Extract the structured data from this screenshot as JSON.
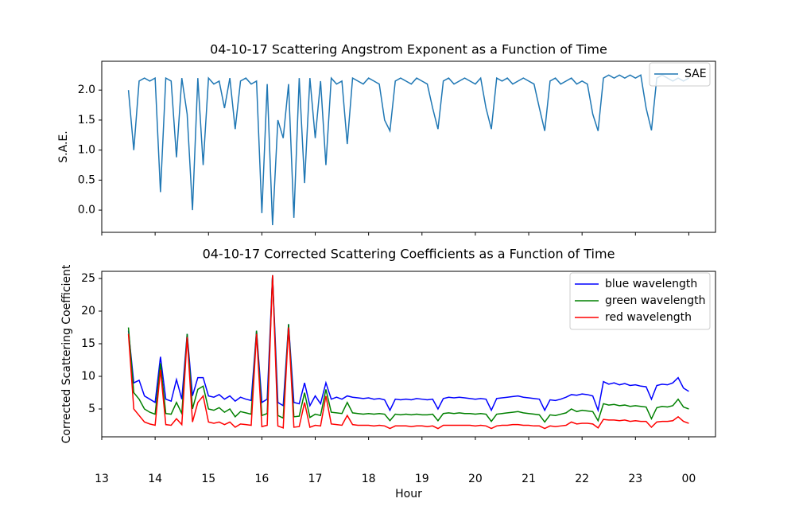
{
  "chart_data": [
    {
      "type": "line",
      "title": "04-10-17 Scattering Angstrom Exponent as a Function of Time",
      "ylabel": "S.A.E.",
      "x": [
        13.5,
        13.6,
        13.7,
        13.8,
        13.9,
        14.0,
        14.1,
        14.2,
        14.3,
        14.4,
        14.5,
        14.6,
        14.7,
        14.8,
        14.9,
        15.0,
        15.1,
        15.2,
        15.3,
        15.4,
        15.5,
        15.6,
        15.7,
        15.8,
        15.9,
        16.0,
        16.1,
        16.2,
        16.3,
        16.4,
        16.5,
        16.6,
        16.7,
        16.8,
        16.9,
        17.0,
        17.1,
        17.2,
        17.3,
        17.4,
        17.5,
        17.6,
        17.7,
        17.8,
        17.9,
        18.0,
        18.1,
        18.2,
        18.3,
        18.4,
        18.5,
        18.6,
        18.7,
        18.8,
        18.9,
        19.0,
        19.1,
        19.2,
        19.3,
        19.4,
        19.5,
        19.6,
        19.7,
        19.8,
        19.9,
        20.0,
        20.1,
        20.2,
        20.3,
        20.4,
        20.5,
        20.6,
        20.7,
        20.8,
        20.9,
        21.0,
        21.1,
        21.2,
        21.3,
        21.4,
        21.5,
        21.6,
        21.7,
        21.8,
        21.9,
        22.0,
        22.1,
        22.2,
        22.3,
        22.4,
        22.5,
        22.6,
        22.7,
        22.8,
        22.9,
        23.0,
        23.1,
        23.2,
        23.3,
        23.4,
        23.5,
        23.6,
        23.7,
        23.8,
        23.9,
        24.0
      ],
      "series": [
        {
          "name": "SAE",
          "color": "#1f77b4",
          "values": [
            2.0,
            1.0,
            2.15,
            2.2,
            2.15,
            2.2,
            0.3,
            2.2,
            2.15,
            0.88,
            2.2,
            1.6,
            0.0,
            2.2,
            0.75,
            2.2,
            2.1,
            2.15,
            1.7,
            2.2,
            1.35,
            2.15,
            2.2,
            2.1,
            2.15,
            -0.05,
            2.1,
            -0.25,
            1.5,
            1.2,
            2.1,
            -0.13,
            2.2,
            0.45,
            2.2,
            1.2,
            2.15,
            0.75,
            2.2,
            2.1,
            2.15,
            1.1,
            2.2,
            2.15,
            2.1,
            2.2,
            2.15,
            2.1,
            1.5,
            1.32,
            2.15,
            2.2,
            2.15,
            2.1,
            2.2,
            2.15,
            2.1,
            1.7,
            1.35,
            2.15,
            2.2,
            2.1,
            2.15,
            2.2,
            2.15,
            2.1,
            2.2,
            1.7,
            1.35,
            2.2,
            2.15,
            2.2,
            2.1,
            2.15,
            2.2,
            2.15,
            2.1,
            1.7,
            1.32,
            2.15,
            2.2,
            2.1,
            2.15,
            2.2,
            2.1,
            2.15,
            2.1,
            1.6,
            1.32,
            2.2,
            2.25,
            2.2,
            2.25,
            2.2,
            2.25,
            2.2,
            2.25,
            1.7,
            1.33,
            2.2,
            2.25,
            2.2,
            2.15,
            2.2,
            2.15,
            2.2
          ]
        }
      ],
      "xlim": [
        13.0,
        24.5
      ],
      "xticks": [
        13,
        14,
        15,
        16,
        17,
        18,
        19,
        20,
        21,
        22,
        23,
        24
      ],
      "ylim": [
        -0.37,
        2.48
      ],
      "yticks": [
        {
          "value": 0,
          "label": "0.0"
        },
        {
          "value": 0.5,
          "label": "0.5"
        },
        {
          "value": 1,
          "label": "1.0"
        },
        {
          "value": 1.5,
          "label": "1.5"
        },
        {
          "value": 2,
          "label": "2.0"
        }
      ],
      "legend": "upper right"
    },
    {
      "type": "line",
      "title": "04-10-17 Corrected Scattering Coefficients as a Function of Time",
      "ylabel": "Corrected Scattering Coefficient",
      "xlabel": "Hour",
      "x": [
        13.5,
        13.6,
        13.7,
        13.8,
        13.9,
        14.0,
        14.1,
        14.2,
        14.3,
        14.4,
        14.5,
        14.6,
        14.7,
        14.8,
        14.9,
        15.0,
        15.1,
        15.2,
        15.3,
        15.4,
        15.5,
        15.6,
        15.7,
        15.8,
        15.9,
        16.0,
        16.1,
        16.2,
        16.3,
        16.4,
        16.5,
        16.6,
        16.7,
        16.8,
        16.9,
        17.0,
        17.1,
        17.2,
        17.3,
        17.4,
        17.5,
        17.6,
        17.7,
        17.8,
        17.9,
        18.0,
        18.1,
        18.2,
        18.3,
        18.4,
        18.5,
        18.6,
        18.7,
        18.8,
        18.9,
        19.0,
        19.1,
        19.2,
        19.3,
        19.4,
        19.5,
        19.6,
        19.7,
        19.8,
        19.9,
        20.0,
        20.1,
        20.2,
        20.3,
        20.4,
        20.5,
        20.6,
        20.7,
        20.8,
        20.9,
        21.0,
        21.1,
        21.2,
        21.3,
        21.4,
        21.5,
        21.6,
        21.7,
        21.8,
        21.9,
        22.0,
        22.1,
        22.2,
        22.3,
        22.4,
        22.5,
        22.6,
        22.7,
        22.8,
        22.9,
        23.0,
        23.1,
        23.2,
        23.3,
        23.4,
        23.5,
        23.6,
        23.7,
        23.8,
        23.9,
        24.0
      ],
      "series": [
        {
          "name": "blue wavelength",
          "color": "#0000ff",
          "values": [
            17,
            9,
            9.4,
            7,
            6.5,
            6,
            13,
            6.5,
            6.2,
            9.5,
            6.5,
            16.5,
            7,
            9.8,
            9.8,
            7,
            6.8,
            7.2,
            6.5,
            7,
            6.2,
            6.8,
            6.5,
            6.3,
            17,
            6,
            6.5,
            25.5,
            6,
            5.5,
            18,
            6,
            5.8,
            9,
            5.5,
            7,
            5.8,
            9,
            6.5,
            6.8,
            6.5,
            7,
            6.8,
            6.7,
            6.6,
            6.7,
            6.5,
            6.6,
            6.4,
            4.8,
            6.5,
            6.4,
            6.5,
            6.4,
            6.6,
            6.5,
            6.4,
            6.5,
            5.0,
            6.6,
            6.8,
            6.7,
            6.8,
            6.7,
            6.6,
            6.5,
            6.6,
            6.5,
            4.8,
            6.6,
            6.7,
            6.8,
            6.9,
            7.0,
            6.8,
            6.7,
            6.6,
            6.5,
            4.8,
            6.4,
            6.3,
            6.5,
            6.8,
            7.2,
            7.1,
            7.3,
            7.2,
            7.0,
            4.8,
            9.2,
            8.8,
            9.0,
            8.7,
            8.9,
            8.6,
            8.7,
            8.5,
            8.4,
            6.5,
            8.6,
            8.8,
            8.7,
            9.0,
            9.8,
            8.2,
            7.7
          ]
        },
        {
          "name": "green wavelength",
          "color": "#008000",
          "values": [
            17.5,
            7.5,
            6.5,
            5,
            4.5,
            4.2,
            12,
            4.3,
            4.2,
            6,
            4.3,
            16.5,
            5,
            8,
            8.5,
            5,
            4.8,
            5.2,
            4.5,
            5,
            3.8,
            4.6,
            4.4,
            4.2,
            17,
            4,
            4.3,
            25.5,
            4,
            3.6,
            18,
            3.8,
            3.9,
            7.5,
            3.7,
            4.2,
            4.0,
            8,
            4.5,
            4.4,
            4.3,
            6,
            4.4,
            4.3,
            4.2,
            4.3,
            4.2,
            4.3,
            4.2,
            3.2,
            4.2,
            4.1,
            4.2,
            4.1,
            4.2,
            4.1,
            4.1,
            4.2,
            3.2,
            4.3,
            4.4,
            4.3,
            4.4,
            4.3,
            4.3,
            4.2,
            4.3,
            4.2,
            3.1,
            4.2,
            4.3,
            4.4,
            4.5,
            4.6,
            4.4,
            4.3,
            4.2,
            4.1,
            3.0,
            4.1,
            4.0,
            4.2,
            4.4,
            5.0,
            4.6,
            4.8,
            4.7,
            4.6,
            3.2,
            5.8,
            5.6,
            5.7,
            5.5,
            5.6,
            5.4,
            5.5,
            5.4,
            5.3,
            3.5,
            5.2,
            5.4,
            5.3,
            5.5,
            6.5,
            5.3,
            5.0
          ]
        },
        {
          "name": "red wavelength",
          "color": "#ff0000",
          "values": [
            16.5,
            5,
            4,
            3,
            2.7,
            2.5,
            11,
            2.6,
            2.5,
            3.5,
            2.6,
            16,
            3,
            6,
            7,
            3,
            2.8,
            3.0,
            2.6,
            3,
            2.2,
            2.7,
            2.6,
            2.5,
            16.5,
            2.3,
            2.5,
            25.5,
            2.4,
            2.1,
            17.5,
            2.2,
            2.3,
            6,
            2.2,
            2.5,
            2.4,
            7,
            2.7,
            2.6,
            2.5,
            4,
            2.6,
            2.5,
            2.5,
            2.5,
            2.4,
            2.5,
            2.4,
            2.0,
            2.4,
            2.4,
            2.4,
            2.3,
            2.4,
            2.4,
            2.3,
            2.4,
            2.0,
            2.5,
            2.5,
            2.5,
            2.5,
            2.5,
            2.5,
            2.4,
            2.5,
            2.4,
            2.0,
            2.4,
            2.5,
            2.5,
            2.6,
            2.6,
            2.5,
            2.5,
            2.4,
            2.4,
            2.0,
            2.4,
            2.3,
            2.4,
            2.5,
            3.0,
            2.7,
            2.8,
            2.8,
            2.7,
            2.1,
            3.4,
            3.3,
            3.3,
            3.2,
            3.3,
            3.1,
            3.2,
            3.1,
            3.1,
            2.2,
            3.0,
            3.1,
            3.1,
            3.2,
            3.8,
            3.1,
            2.8
          ]
        }
      ],
      "xlim": [
        13.0,
        24.5
      ],
      "xticks": [
        13,
        14,
        15,
        16,
        17,
        18,
        19,
        20,
        21,
        22,
        23,
        {
          "value": 24,
          "label": "00"
        }
      ],
      "ylim": [
        0.73,
        26.1
      ],
      "yticks": [
        5,
        10,
        15,
        20,
        25
      ],
      "legend": "upper right"
    }
  ]
}
